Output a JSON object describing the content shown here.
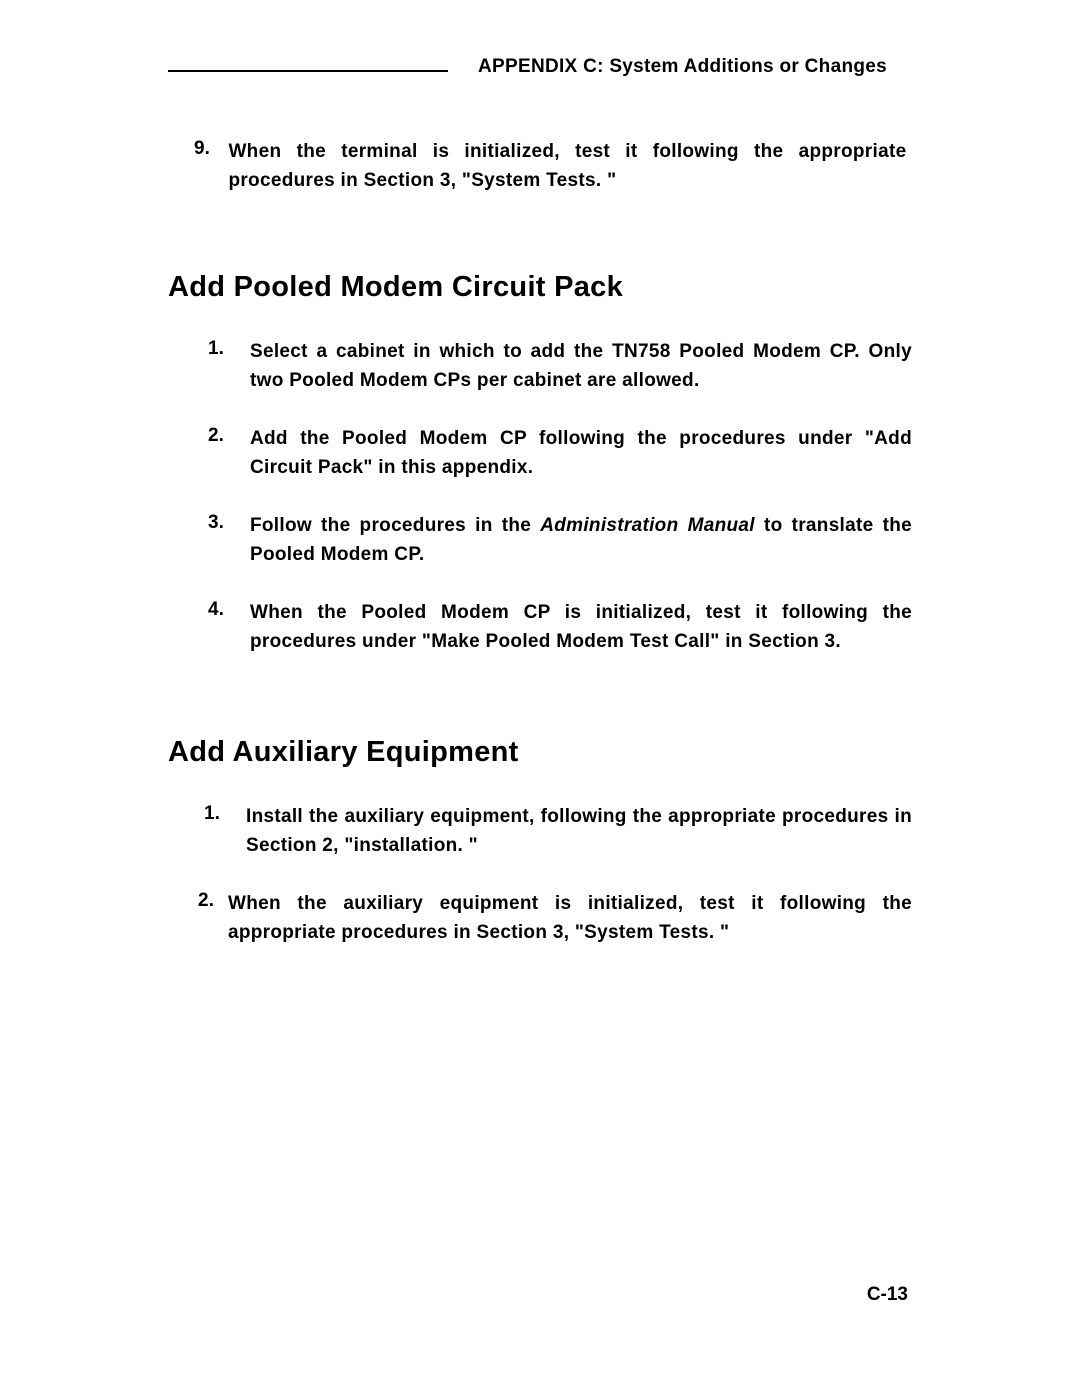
{
  "header": {
    "text": "APPENDIX C: System Additions or Changes"
  },
  "intro": {
    "num": "9.",
    "text": "When the terminal is initialized, test it following the appropriate procedures in Section 3, \"System Tests. \""
  },
  "section1": {
    "heading": "Add Pooled Modem Circuit Pack",
    "items": [
      {
        "num": "1.",
        "text": "Select a cabinet in which to add the TN758 Pooled Modem CP. Only two Pooled Modem CPs per cabinet are allowed."
      },
      {
        "num": "2.",
        "text": "Add the Pooled Modem CP following the procedures under \"Add Circuit Pack\" in this appendix."
      },
      {
        "num": "3.",
        "text_before": "Follow the procedures in the ",
        "text_italic": "Administration Manual",
        "text_after": " to translate the Pooled Modem CP."
      },
      {
        "num": "4.",
        "text": "When the Pooled Modem CP is initialized, test it following the procedures under \"Make Pooled Modem Test Call\" in Section 3."
      }
    ]
  },
  "section2": {
    "heading": "Add Auxiliary Equipment",
    "items": [
      {
        "num": "1.",
        "text": "Install the auxiliary equipment, following the appropriate procedures in Section 2, \"installation. \""
      },
      {
        "num": "2.",
        "text": "When the auxiliary equipment is initialized, test it following the appropriate procedures in Section 3, \"System Tests. \""
      }
    ]
  },
  "page_number": "C-13"
}
